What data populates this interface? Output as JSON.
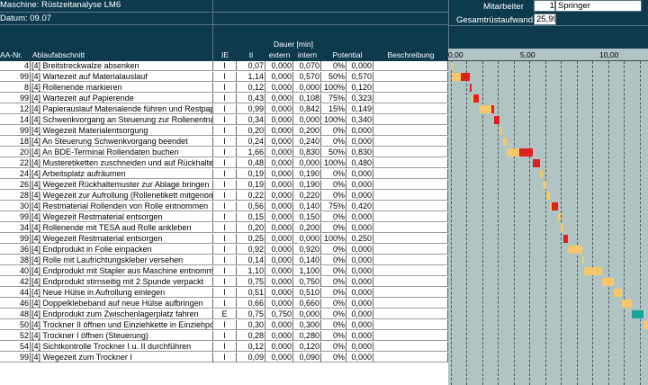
{
  "header": {
    "maschine_label": "Maschine:",
    "maschine_value": "Rüstzeitanalyse LM6",
    "datum_label": "Datum:",
    "datum_value": "09.07",
    "mitarbeiter_label": "Mitarbeiter",
    "mitarbeiter_value": "Springer",
    "mitarbeiter_prefix": "1",
    "gesamt_label": "Gesamtrüstaufwand:",
    "gesamt_value": "25,99"
  },
  "columns": {
    "nr": "AA-Nr.",
    "ablauf": "Ablaufabschnitt",
    "ie": "IE",
    "ti": "ti",
    "dauer": "Dauer [min]",
    "extern": "extern",
    "intern": "intern",
    "potential": "Potential",
    "beschreibung": "Beschreibung"
  },
  "colors": {
    "header_bg": "#0e3a4e",
    "chart_bg": "#b0c4c4",
    "bar_intern": "#f5c76a",
    "bar_potential": "#dd2020",
    "bar_extern": "#1aa39a"
  },
  "rows": [
    {
      "nr": "4",
      "ab": "[4] Breitstreckwalze absenken",
      "ie": "I",
      "ti": "0,07",
      "ex": "0,000",
      "in": "0,070",
      "pp": "0%",
      "pv": "0,000"
    },
    {
      "nr": "99",
      "ab": "[4] Wartezeit auf Materialauslauf",
      "ie": "I",
      "ti": "1,14",
      "ex": "0,000",
      "in": "0,570",
      "pp": "50%",
      "pv": "0,570"
    },
    {
      "nr": "8",
      "ab": "[4] Rollenende markieren",
      "ie": "I",
      "ti": "0,12",
      "ex": "0,000",
      "in": "0,000",
      "pp": "100%",
      "pv": "0,120"
    },
    {
      "nr": "99",
      "ab": "[4] Wartezeit auf Papierende",
      "ie": "I",
      "ti": "0,43",
      "ex": "0,000",
      "in": "0,108",
      "pp": "75%",
      "pv": "0,323"
    },
    {
      "nr": "12",
      "ab": "[4] Papierauslauf Materialende führen und Restpapier",
      "ie": "I",
      "ti": "0,99",
      "ex": "0,000",
      "in": "0,842",
      "pp": "15%",
      "pv": "0,149"
    },
    {
      "nr": "14",
      "ab": "[4] Schwenkvorgang an Steuerung zur Rollenentnahme",
      "ie": "I",
      "ti": "0,34",
      "ex": "0,000",
      "in": "0,000",
      "pp": "100%",
      "pv": "0,340"
    },
    {
      "nr": "99",
      "ab": "[4] Wegezeit Materialentsorgung",
      "ie": "I",
      "ti": "0,20",
      "ex": "0,000",
      "in": "0,200",
      "pp": "0%",
      "pv": "0,000"
    },
    {
      "nr": "18",
      "ab": "[4] An Steuerung Schwenkvorgang beendet",
      "ie": "I",
      "ti": "0,24",
      "ex": "0,000",
      "in": "0,240",
      "pp": "0%",
      "pv": "0,000"
    },
    {
      "nr": "20",
      "ab": "[4] An BDE-Terminal Rollendaten buchen",
      "ie": "I",
      "ti": "1,66",
      "ex": "0,000",
      "in": "0,830",
      "pp": "50%",
      "pv": "0,830"
    },
    {
      "nr": "22",
      "ab": "[4] Musteretiketten zuschneiden und auf Rückhaltemuster",
      "ie": "I",
      "ti": "0,48",
      "ex": "0,000",
      "in": "0,000",
      "pp": "100%",
      "pv": "0,480"
    },
    {
      "nr": "24",
      "ab": "[4] Arbeitsplatz aufräumen",
      "ie": "I",
      "ti": "0,19",
      "ex": "0,000",
      "in": "0,190",
      "pp": "0%",
      "pv": "0,000"
    },
    {
      "nr": "26",
      "ab": "[4] Wegezeit Rückhaltemuster zur Ablage bringen",
      "ie": "I",
      "ti": "0,19",
      "ex": "0,000",
      "in": "0,190",
      "pp": "0%",
      "pv": "0,000"
    },
    {
      "nr": "28",
      "ab": "[4] Wegezeit zur Aufrollung (Rollenetikett mitgenommen)",
      "ie": "I",
      "ti": "0,22",
      "ex": "0,000",
      "in": "0,220",
      "pp": "0%",
      "pv": "0,000"
    },
    {
      "nr": "30",
      "ab": "[4] Restmaterial Rollenden von Rolle entnommen",
      "ie": "I",
      "ti": "0,56",
      "ex": "0,000",
      "in": "0,140",
      "pp": "75%",
      "pv": "0,420"
    },
    {
      "nr": "99",
      "ab": "[4] Wegezeit Restmaterial entsorgen",
      "ie": "I",
      "ti": "0,15",
      "ex": "0,000",
      "in": "0,150",
      "pp": "0%",
      "pv": "0,000"
    },
    {
      "nr": "34",
      "ab": "[4] Rollenende mit TESA aud Rolle ankleben",
      "ie": "I",
      "ti": "0,20",
      "ex": "0,000",
      "in": "0,200",
      "pp": "0%",
      "pv": "0,000"
    },
    {
      "nr": "99",
      "ab": "[4] Wegezeit Restmaterial entsorgen",
      "ie": "I",
      "ti": "0,25",
      "ex": "0,000",
      "in": "0,000",
      "pp": "100%",
      "pv": "0,250"
    },
    {
      "nr": "36",
      "ab": "[4] Endprodukt in Folie einpacken",
      "ie": "I",
      "ti": "0,92",
      "ex": "0,000",
      "in": "0,920",
      "pp": "0%",
      "pv": "0,000"
    },
    {
      "nr": "38",
      "ab": "[4] Rolle mit Laufrichtungskleber versehen",
      "ie": "I",
      "ti": "0,14",
      "ex": "0,000",
      "in": "0,140",
      "pp": "0%",
      "pv": "0,000"
    },
    {
      "nr": "40",
      "ab": "[4] Endprodukt mit Stapler aus Maschine entnommen",
      "ie": "I",
      "ti": "1,10",
      "ex": "0,000",
      "in": "1,100",
      "pp": "0%",
      "pv": "0,000"
    },
    {
      "nr": "42",
      "ab": "[4] Endprodukt stirnseitig mit 2 Spunde verpackt",
      "ie": "I",
      "ti": "0,75",
      "ex": "0,000",
      "in": "0,750",
      "pp": "0%",
      "pv": "0,000"
    },
    {
      "nr": "44",
      "ab": "[4] Neue Hülse in Aufrollung einlegen",
      "ie": "I",
      "ti": "0,51",
      "ex": "0,000",
      "in": "0,510",
      "pp": "0%",
      "pv": "0,000"
    },
    {
      "nr": "46",
      "ab": "[4] Doppelklebeband auf neue Hülse aufbringen",
      "ie": "I",
      "ti": "0,66",
      "ex": "0,000",
      "in": "0,660",
      "pp": "0%",
      "pv": "0,000"
    },
    {
      "nr": "48",
      "ab": "[4] Endprodukt zum Zwischenlagerplatz fahren",
      "ie": "E",
      "ti": "0,75",
      "ex": "0,750",
      "in": "0,000",
      "pp": "0%",
      "pv": "0,000"
    },
    {
      "nr": "50",
      "ab": "[4] Trockner II öffnen und Einziehkette in Einziehposition",
      "ie": "I",
      "ti": "0,30",
      "ex": "0,000",
      "in": "0,300",
      "pp": "0%",
      "pv": "0,000"
    },
    {
      "nr": "52",
      "ab": "[4] Trockner I öffnen (Steuerung)",
      "ie": "I",
      "ti": "0,28",
      "ex": "0,000",
      "in": "0,280",
      "pp": "0%",
      "pv": "0,000"
    },
    {
      "nr": "54",
      "ab": "[4] Sichtkontrolle Trockner I u. II durchführen",
      "ie": "I",
      "ti": "0,12",
      "ex": "0,000",
      "in": "0,120",
      "pp": "0%",
      "pv": "0,000"
    },
    {
      "nr": "99",
      "ab": "[4] Wegezeit zum Trockner I",
      "ie": "I",
      "ti": "0,09",
      "ex": "0,000",
      "in": "0,090",
      "pp": "0%",
      "pv": "0,000"
    }
  ],
  "chart_data": {
    "type": "bar",
    "subtype": "gantt-waterfall",
    "xlim": [
      0,
      15
    ],
    "x_ticks": [
      "0,00",
      "5,00",
      "10,00",
      "15,00"
    ],
    "grid": true,
    "categories": [
      "4",
      "99",
      "8",
      "99",
      "12",
      "14",
      "99",
      "18",
      "20",
      "22",
      "24",
      "26",
      "28",
      "30",
      "99",
      "34",
      "99",
      "36",
      "38",
      "40",
      "42",
      "44",
      "46",
      "48",
      "50",
      "52",
      "54",
      "99"
    ],
    "series": [
      {
        "kind": "intern",
        "values": [
          0.07,
          0.57,
          0,
          0.108,
          0.842,
          0,
          0.2,
          0.24,
          0.83,
          0,
          0.19,
          0.19,
          0.22,
          0.14,
          0.15,
          0.2,
          0,
          0.92,
          0.14,
          1.1,
          0.75,
          0.51,
          0.66,
          0,
          0.3,
          0.28,
          0.12,
          0.09
        ]
      },
      {
        "kind": "potential",
        "values": [
          0,
          0.57,
          0.12,
          0.323,
          0.149,
          0.34,
          0,
          0,
          0.83,
          0.48,
          0,
          0,
          0,
          0.42,
          0,
          0,
          0.25,
          0,
          0,
          0,
          0,
          0,
          0,
          0,
          0,
          0,
          0,
          0
        ]
      },
      {
        "kind": "extern",
        "values": [
          0,
          0,
          0,
          0,
          0,
          0,
          0,
          0,
          0,
          0,
          0,
          0,
          0,
          0,
          0,
          0,
          0,
          0,
          0,
          0,
          0,
          0,
          0,
          0.75,
          0,
          0,
          0,
          0
        ]
      }
    ]
  }
}
